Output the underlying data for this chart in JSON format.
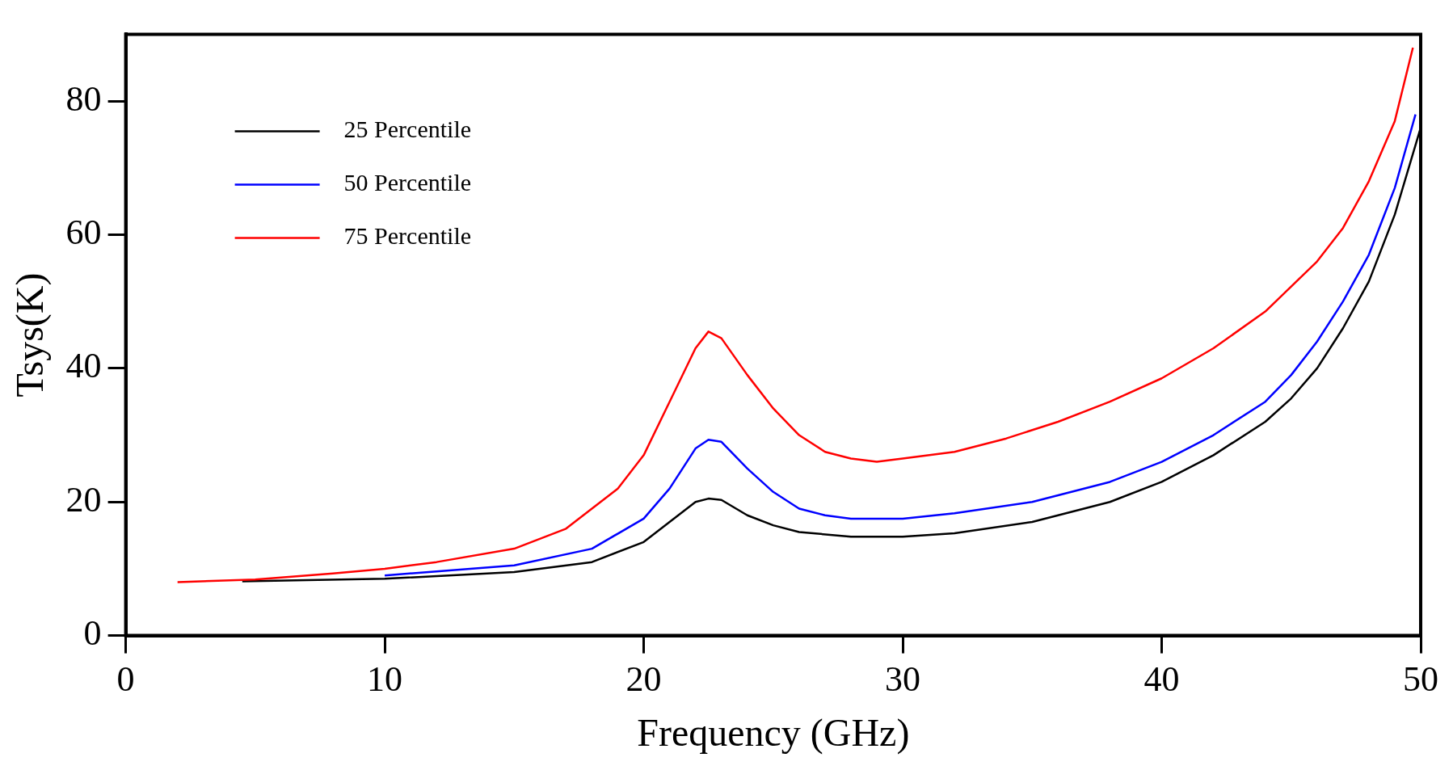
{
  "chart_data": {
    "type": "line",
    "xlabel": "Frequency (GHz)",
    "ylabel": "Tsys(K)",
    "xlim": [
      0,
      50
    ],
    "ylim": [
      0,
      90
    ],
    "xticks": [
      0,
      10,
      20,
      30,
      40,
      50
    ],
    "yticks": [
      0,
      20,
      40,
      60,
      80
    ],
    "grid": false,
    "legend": "top left",
    "marker": "none",
    "line_style": "solid",
    "series": [
      {
        "name": "25 Percentile",
        "color": "#000000",
        "x": [
          4.5,
          7,
          10,
          15,
          18,
          20,
          21,
          22,
          22.5,
          23,
          24,
          25,
          26,
          28,
          30,
          32,
          35,
          38,
          40,
          42,
          44,
          45,
          46,
          47,
          48,
          49,
          50
        ],
        "values": [
          8.1,
          8.3,
          8.5,
          9.5,
          11,
          14,
          17,
          20,
          20.5,
          20.3,
          18,
          16.5,
          15.5,
          14.8,
          14.8,
          15.3,
          17,
          20,
          23,
          27,
          32,
          35.5,
          40,
          46,
          53,
          63,
          76
        ]
      },
      {
        "name": "50 Percentile",
        "color": "#0000ff",
        "x": [
          10,
          12,
          15,
          18,
          20,
          21,
          22,
          22.5,
          23,
          24,
          25,
          26,
          27,
          28,
          30,
          32,
          35,
          38,
          40,
          42,
          44,
          45,
          46,
          47,
          48,
          49,
          49.8
        ],
        "values": [
          9,
          9.6,
          10.5,
          13,
          17.5,
          22,
          28,
          29.3,
          29,
          25,
          21.5,
          19,
          18,
          17.5,
          17.5,
          18.3,
          20,
          23,
          26,
          30,
          35,
          39,
          44,
          50,
          57,
          67,
          78
        ]
      },
      {
        "name": "75 Percentile",
        "color": "#ff0000",
        "x": [
          2,
          5,
          8,
          10,
          12,
          15,
          17,
          19,
          20,
          21,
          22,
          22.5,
          23,
          24,
          25,
          26,
          27,
          28,
          29,
          30,
          32,
          34,
          36,
          38,
          40,
          42,
          44,
          46,
          47,
          48,
          49,
          49.7
        ],
        "values": [
          8,
          8.4,
          9.3,
          10,
          11,
          13,
          16,
          22,
          27,
          35,
          43,
          45.5,
          44.5,
          39,
          34,
          30,
          27.5,
          26.5,
          26,
          26.5,
          27.5,
          29.5,
          32,
          35,
          38.5,
          43,
          48.5,
          56,
          61,
          68,
          77,
          88
        ]
      }
    ]
  }
}
